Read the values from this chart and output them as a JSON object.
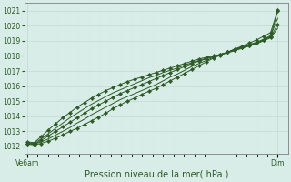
{
  "title": "Pression niveau de la mer( hPa )",
  "bg_color": "#d8ede8",
  "grid_color_major": "#c8d8d0",
  "grid_color_minor": "#dde8e4",
  "line_color": "#2d5a27",
  "marker_color": "#2d5a27",
  "ylim": [
    1011.5,
    1021.5
  ],
  "yticks": [
    1012,
    1013,
    1014,
    1015,
    1016,
    1017,
    1018,
    1019,
    1020,
    1021
  ],
  "xlabel_left": "Ve6am",
  "xlabel_right": "Dim",
  "n_points": 36,
  "lines": [
    [
      1012.15,
      1012.1,
      1012.2,
      1012.35,
      1012.55,
      1012.75,
      1013.0,
      1013.2,
      1013.45,
      1013.7,
      1013.95,
      1014.2,
      1014.5,
      1014.75,
      1015.0,
      1015.2,
      1015.45,
      1015.65,
      1015.85,
      1016.1,
      1016.35,
      1016.6,
      1016.85,
      1017.1,
      1017.35,
      1017.6,
      1017.85,
      1018.05,
      1018.25,
      1018.45,
      1018.65,
      1018.85,
      1019.05,
      1019.3,
      1019.55,
      1021.05
    ],
    [
      1012.2,
      1012.15,
      1012.3,
      1012.5,
      1012.75,
      1013.0,
      1013.25,
      1013.55,
      1013.8,
      1014.1,
      1014.35,
      1014.6,
      1014.85,
      1015.1,
      1015.3,
      1015.5,
      1015.7,
      1015.9,
      1016.1,
      1016.35,
      1016.6,
      1016.8,
      1017.05,
      1017.3,
      1017.5,
      1017.7,
      1017.9,
      1018.1,
      1018.25,
      1018.45,
      1018.6,
      1018.75,
      1018.9,
      1019.1,
      1019.35,
      1020.5
    ],
    [
      1012.2,
      1012.15,
      1012.4,
      1012.7,
      1013.0,
      1013.3,
      1013.6,
      1013.9,
      1014.2,
      1014.5,
      1014.75,
      1015.0,
      1015.25,
      1015.5,
      1015.7,
      1015.9,
      1016.1,
      1016.3,
      1016.5,
      1016.7,
      1016.9,
      1017.1,
      1017.3,
      1017.5,
      1017.65,
      1017.8,
      1017.95,
      1018.1,
      1018.25,
      1018.4,
      1018.55,
      1018.7,
      1018.85,
      1019.05,
      1019.25,
      1020.1
    ],
    [
      1012.25,
      1012.2,
      1012.5,
      1012.85,
      1013.2,
      1013.55,
      1013.9,
      1014.2,
      1014.5,
      1014.8,
      1015.05,
      1015.3,
      1015.55,
      1015.75,
      1015.95,
      1016.15,
      1016.35,
      1016.55,
      1016.7,
      1016.9,
      1017.05,
      1017.2,
      1017.4,
      1017.55,
      1017.7,
      1017.85,
      1017.95,
      1018.1,
      1018.2,
      1018.35,
      1018.5,
      1018.65,
      1018.8,
      1019.0,
      1019.2,
      1019.85
    ],
    [
      1012.3,
      1012.25,
      1012.65,
      1013.1,
      1013.5,
      1013.9,
      1014.25,
      1014.6,
      1014.9,
      1015.2,
      1015.45,
      1015.7,
      1015.9,
      1016.1,
      1016.3,
      1016.45,
      1016.6,
      1016.75,
      1016.9,
      1017.05,
      1017.2,
      1017.35,
      1017.5,
      1017.65,
      1017.8,
      1017.9,
      1018.0,
      1018.1,
      1018.25,
      1018.4,
      1018.55,
      1018.7,
      1018.85,
      1019.05,
      1019.3,
      1021.0
    ]
  ],
  "marker_lines": [
    0,
    2,
    4
  ],
  "no_marker_lines": [
    1,
    3
  ],
  "spine_color": "#808080",
  "tick_label_color": "#2d5a27",
  "tick_fontsize": 5.5,
  "xlabel_fontsize": 7.0
}
